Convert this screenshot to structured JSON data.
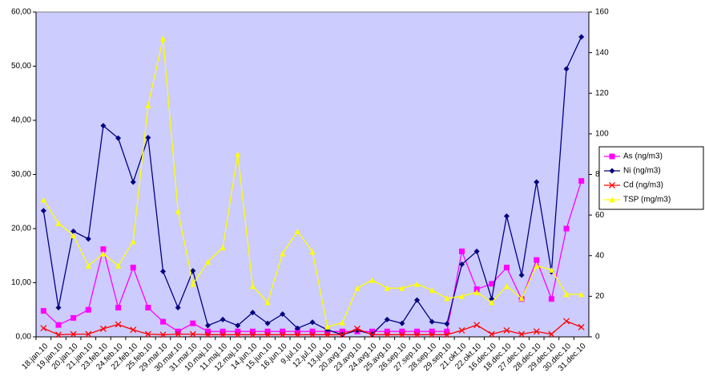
{
  "chart_data": {
    "type": "line",
    "categories": [
      "18.jan.10",
      "19.jan.10",
      "20.jan.10",
      "21.jan.10",
      "23.feb.10",
      "24.feb.10",
      "22.feb.10",
      "25.feb.10",
      "29.mar.10",
      "30.mar.10",
      "31.mar.10",
      "10.maj.10",
      "11.maj.10",
      "12.maj.10",
      "14.jun.10",
      "15.jun.10",
      "16.jun.10",
      "9.jul.10",
      "12.jul.10",
      "13.jul.10",
      "20.avg.10",
      "23.avg.10",
      "24.avg.10",
      "25.avg.10",
      "26.sep.10",
      "27.sep.10",
      "28.sep.10",
      "29.sep.10",
      "21.okt.10",
      "22.okt.10",
      "16.dec.10",
      "18.dec.10",
      "27.dec.10",
      "28.dec.10",
      "29.dec.10",
      "30.dec.10",
      "31.dec.10"
    ],
    "series": [
      {
        "name": "As (ng/m3)",
        "color": "#ff00ff",
        "marker": "square",
        "values": [
          4.8,
          2.2,
          3.5,
          5.0,
          16.2,
          5.4,
          12.8,
          5.4,
          2.8,
          1.0,
          2.5,
          1.0,
          1.0,
          1.0,
          1.0,
          1.0,
          1.0,
          1.0,
          1.0,
          1.0,
          1.0,
          1.0,
          1.0,
          1.0,
          1.0,
          1.0,
          1.0,
          1.0,
          15.8,
          8.8,
          9.8,
          12.8,
          7.0,
          14.2,
          7.0,
          20.0,
          28.8
        ]
      },
      {
        "name": "Ni (ng/m3)",
        "color": "#000080",
        "marker": "diamond",
        "values": [
          23.3,
          5.4,
          19.5,
          18.1,
          39.0,
          36.7,
          28.6,
          36.8,
          12.1,
          5.4,
          12.2,
          2.1,
          3.2,
          2.1,
          4.5,
          2.5,
          4.2,
          1.6,
          2.7,
          1.3,
          0.4,
          1.2,
          0.5,
          3.2,
          2.5,
          6.8,
          2.8,
          2.4,
          13.4,
          15.8,
          7.0,
          22.3,
          11.4,
          28.6,
          12.0,
          49.5,
          55.4
        ]
      },
      {
        "name": "Cd (ng/m3)",
        "color": "#ff0000",
        "marker": "x",
        "values": [
          1.6,
          0.4,
          0.5,
          0.5,
          1.5,
          2.3,
          1.3,
          0.5,
          0.4,
          0.5,
          0.5,
          0.4,
          0.4,
          0.4,
          0.4,
          0.4,
          0.4,
          0.4,
          0.4,
          0.4,
          0.4,
          1.5,
          0.4,
          0.4,
          0.4,
          0.4,
          0.4,
          0.4,
          1.2,
          2.2,
          0.5,
          1.2,
          0.5,
          1.0,
          0.5,
          2.9,
          1.8
        ]
      },
      {
        "name": "TSP (mg/m3)",
        "color": "#ffff00",
        "marker": "triangle",
        "axis": "y2",
        "values": [
          67.5,
          56,
          50,
          35,
          41,
          35,
          47,
          114,
          147,
          62,
          26,
          37,
          44,
          90,
          25,
          17,
          41,
          52,
          42,
          5,
          7,
          24,
          28,
          24,
          24,
          26,
          23,
          19,
          20,
          22,
          17,
          25,
          19,
          35,
          33,
          21,
          21
        ]
      }
    ],
    "ylim": [
      0,
      60
    ],
    "yticks": [
      {
        "value": 0,
        "label": "0,00"
      },
      {
        "value": 10,
        "label": "10,00"
      },
      {
        "value": 20,
        "label": "20,00"
      },
      {
        "value": 30,
        "label": "30,00"
      },
      {
        "value": 40,
        "label": "40,00"
      },
      {
        "value": 50,
        "label": "50,00"
      },
      {
        "value": 60,
        "label": "60,00"
      }
    ],
    "y2lim": [
      0,
      160
    ],
    "y2ticks": [
      0,
      20,
      40,
      60,
      80,
      100,
      120,
      140,
      160
    ],
    "plot_color": "#ccccff"
  }
}
